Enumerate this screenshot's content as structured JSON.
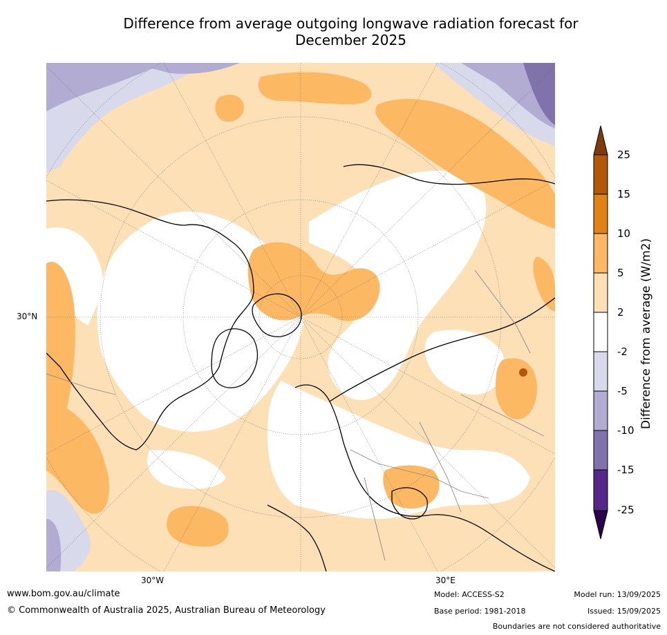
{
  "title_line1": "Difference from average outgoing longwave radiation forecast for",
  "title_line2": "December 2025",
  "map": {
    "projection": "north-polar-stereographic",
    "lat_label": "30°N",
    "lon_labels": [
      "30°W",
      "30°E"
    ]
  },
  "colorbar": {
    "label": "Difference from average (W/m2)",
    "ticks": [
      "25",
      "15",
      "10",
      "5",
      "2",
      "-2",
      "-5",
      "-10",
      "-15",
      "-25"
    ],
    "colors": {
      "over": "#7f3b08",
      "15_25": "#b35806",
      "10_15": "#e08214",
      "5_10": "#fdb863",
      "2_5": "#fee0b6",
      "m2_2": "#ffffff",
      "m5_m2": "#d8daeb",
      "m10_m5": "#b2abd2",
      "m15_m10": "#8073ac",
      "m25_m15": "#542788",
      "under": "#2d004b"
    }
  },
  "footer": {
    "website": "www.bom.gov.au/climate",
    "copyright": "© Commonwealth of Australia 2025, Australian Bureau of Meteorology",
    "model": "Model: ACCESS-S2",
    "base_period": "Base period: 1981-2018",
    "model_run": "Model run: 13/09/2025",
    "issued": "Issued: 15/09/2025",
    "disclaimer": "Boundaries are not considered authoritative"
  }
}
